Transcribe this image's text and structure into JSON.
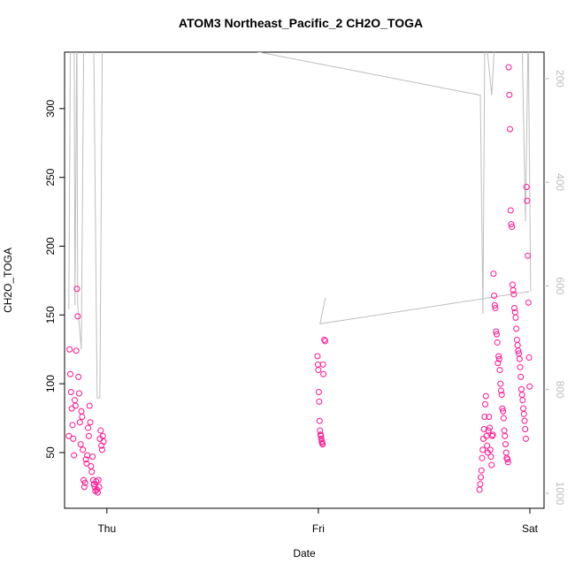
{
  "chart_data": {
    "type": "scatter",
    "title": "ATOM3 Northeast_Pacific_2 CH2O_TOGA",
    "x_label": "Date",
    "y_label": "CH2O_TOGA",
    "xlim": [
      -0.2,
      2.067
    ],
    "xticks": [
      {
        "value": 0,
        "label": "Thu"
      },
      {
        "value": 1,
        "label": "Fri"
      },
      {
        "value": 2,
        "label": "Sat"
      }
    ],
    "ylim": [
      9.5,
      341
    ],
    "yticks": [
      50,
      100,
      150,
      200,
      250,
      300
    ],
    "y2lim": [
      1029,
      149
    ],
    "y2ticks": [
      200,
      400,
      600,
      800,
      1000
    ],
    "points": {
      "color": "#ff1493",
      "x": [
        -0.18,
        -0.1765,
        -0.173,
        -0.1695,
        -0.166,
        -0.1625,
        -0.159,
        -0.1555,
        -0.152,
        -0.1485,
        -0.145,
        -0.1415,
        -0.138,
        -0.1345,
        -0.131,
        -0.1275,
        -0.124,
        -0.1205,
        -0.117,
        -0.1135,
        -0.11,
        -0.1065,
        -0.103,
        -0.0995,
        -0.096,
        -0.0925,
        -0.089,
        -0.0855,
        -0.082,
        -0.0785,
        -0.075,
        -0.0715,
        -0.068,
        -0.0645,
        -0.061,
        -0.0575,
        -0.054,
        -0.0505,
        -0.047,
        -0.0435,
        -0.04,
        -0.0365,
        -0.033,
        -0.0295,
        -0.026,
        -0.0225,
        -0.019,
        -0.0155,
        0.996,
        0.998,
        1.0,
        1.002,
        1.004,
        1.006,
        1.008,
        1.01,
        1.012,
        1.014,
        1.016,
        1.018,
        1.02,
        1.022,
        1.024,
        1.028,
        1.032,
        1.762,
        1.765,
        1.768,
        1.771,
        1.774,
        1.777,
        1.78,
        1.783,
        1.786,
        1.789,
        1.792,
        1.795,
        1.798,
        1.801,
        1.804,
        1.807,
        1.81,
        1.813,
        1.816,
        1.819,
        1.822,
        1.825,
        1.828,
        1.831,
        1.834,
        1.837,
        1.84,
        1.843,
        1.846,
        1.849,
        1.852,
        1.855,
        1.858,
        1.861,
        1.864,
        1.867,
        1.87,
        1.873,
        1.876,
        1.879,
        1.882,
        1.885,
        1.888,
        1.891,
        1.894,
        1.897,
        1.9,
        1.903,
        1.906,
        1.909,
        1.912,
        1.915,
        1.918,
        1.921,
        1.924,
        1.927,
        1.93,
        1.933,
        1.936,
        1.939,
        1.942,
        1.945,
        1.948,
        1.951,
        1.954,
        1.957,
        1.96,
        1.963,
        1.966,
        1.969,
        1.972,
        1.975,
        1.978,
        1.981,
        1.984,
        1.987,
        1.99,
        1.993,
        1.996,
        1.999
      ],
      "values": [
        62,
        125,
        107,
        94,
        82,
        70,
        60,
        48,
        88,
        84,
        124,
        169,
        149,
        105,
        93,
        72,
        56,
        80,
        76,
        52,
        30,
        25,
        28,
        45,
        42,
        48,
        68,
        62,
        84,
        72,
        40,
        36,
        47,
        30,
        27,
        25,
        22,
        29,
        23,
        21,
        30,
        25,
        60,
        66,
        55,
        52,
        62,
        58,
        120,
        114,
        110,
        94,
        87,
        73,
        66,
        63,
        62,
        60,
        58,
        57,
        56,
        114,
        107,
        132,
        131,
        23,
        27,
        32,
        37,
        46,
        52,
        60,
        67,
        76,
        85,
        91,
        62,
        55,
        50,
        66,
        76,
        68,
        52,
        47,
        41,
        62,
        63,
        180,
        164,
        157,
        155,
        138,
        136,
        130,
        115,
        120,
        118,
        110,
        100,
        95,
        92,
        82,
        80,
        75,
        66,
        62,
        56,
        50,
        46,
        45,
        43,
        330,
        310,
        285,
        226,
        216,
        214,
        172,
        168,
        165,
        155,
        152,
        148,
        140,
        132,
        128,
        124,
        122,
        118,
        112,
        105,
        96,
        92,
        88,
        82,
        78,
        73,
        67,
        60,
        243,
        233,
        193,
        159,
        119,
        98
      ]
    },
    "line": {
      "color": "#bebebe",
      "axis": "y2",
      "x": [
        -0.18,
        -0.172,
        -0.155,
        -0.151,
        -0.142,
        -0.138,
        -0.121,
        -0.109,
        -0.088,
        -0.063,
        -0.046,
        -0.033,
        -0.021,
        -0.013,
        0.3,
        0.707,
        1.766,
        1.778,
        1.787,
        1.82,
        1.837,
        1.962,
        1.979,
        1.992,
        2.004,
        null,
        1.033,
        1.008,
        1.996
      ],
      "values": [
        645,
        100,
        100,
        637,
        100,
        637,
        722,
        100,
        100,
        100,
        816,
        816,
        100,
        100,
        100,
        148,
        232,
        654,
        100,
        232,
        100,
        100,
        475,
        100,
        611,
        null,
        623,
        673,
        611
      ]
    }
  }
}
